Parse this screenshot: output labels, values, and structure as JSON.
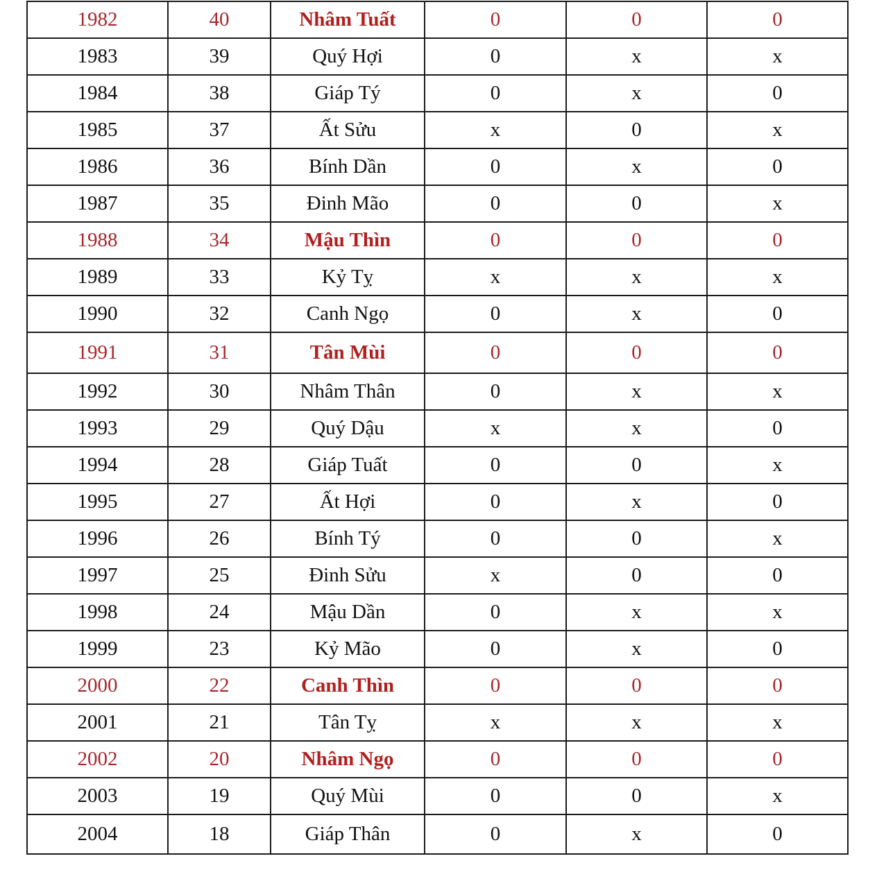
{
  "highlight_color": "#a8262b",
  "rows": [
    {
      "year": "1982",
      "age": "40",
      "name": "Nhâm Tuất",
      "c1": "0",
      "c2": "0",
      "c3": "0",
      "highlight": true
    },
    {
      "year": "1983",
      "age": "39",
      "name": "Quý Hợi",
      "c1": "0",
      "c2": "x",
      "c3": "x",
      "highlight": false
    },
    {
      "year": "1984",
      "age": "38",
      "name": "Giáp Tý",
      "c1": "0",
      "c2": "x",
      "c3": "0",
      "highlight": false
    },
    {
      "year": "1985",
      "age": "37",
      "name": "Ất Sửu",
      "c1": "x",
      "c2": "0",
      "c3": "x",
      "highlight": false
    },
    {
      "year": "1986",
      "age": "36",
      "name": "Bính Dần",
      "c1": "0",
      "c2": "x",
      "c3": "0",
      "highlight": false
    },
    {
      "year": "1987",
      "age": "35",
      "name": "Đinh Mão",
      "c1": "0",
      "c2": "0",
      "c3": "x",
      "highlight": false
    },
    {
      "year": "1988",
      "age": "34",
      "name": "Mậu Thìn",
      "c1": "0",
      "c2": "0",
      "c3": "0",
      "highlight": true
    },
    {
      "year": "1989",
      "age": "33",
      "name": "Kỷ Tỵ",
      "c1": "x",
      "c2": "x",
      "c3": "x",
      "highlight": false
    },
    {
      "year": "1990",
      "age": "32",
      "name": "Canh Ngọ",
      "c1": "0",
      "c2": "x",
      "c3": "0",
      "highlight": false
    },
    {
      "year": "1991",
      "age": "31",
      "name": "Tân Mùi",
      "c1": "0",
      "c2": "0",
      "c3": "0",
      "highlight": true
    },
    {
      "year": "1992",
      "age": "30",
      "name": "Nhâm Thân",
      "c1": "0",
      "c2": "x",
      "c3": "x",
      "highlight": false
    },
    {
      "year": "1993",
      "age": "29",
      "name": "Quý Dậu",
      "c1": "x",
      "c2": "x",
      "c3": "0",
      "highlight": false
    },
    {
      "year": "1994",
      "age": "28",
      "name": "Giáp Tuất",
      "c1": "0",
      "c2": "0",
      "c3": "x",
      "highlight": false
    },
    {
      "year": "1995",
      "age": "27",
      "name": "Ất Hợi",
      "c1": "0",
      "c2": "x",
      "c3": "0",
      "highlight": false
    },
    {
      "year": "1996",
      "age": "26",
      "name": "Bính Tý",
      "c1": "0",
      "c2": "0",
      "c3": "x",
      "highlight": false
    },
    {
      "year": "1997",
      "age": "25",
      "name": "Đinh Sửu",
      "c1": "x",
      "c2": "0",
      "c3": "0",
      "highlight": false
    },
    {
      "year": "1998",
      "age": "24",
      "name": "Mậu Dần",
      "c1": "0",
      "c2": "x",
      "c3": "x",
      "highlight": false
    },
    {
      "year": "1999",
      "age": "23",
      "name": "Kỷ Mão",
      "c1": "0",
      "c2": "x",
      "c3": "0",
      "highlight": false
    },
    {
      "year": "2000",
      "age": "22",
      "name": "Canh Thìn",
      "c1": "0",
      "c2": "0",
      "c3": "0",
      "highlight": true
    },
    {
      "year": "2001",
      "age": "21",
      "name": "Tân Tỵ",
      "c1": "x",
      "c2": "x",
      "c3": "x",
      "highlight": false
    },
    {
      "year": "2002",
      "age": "20",
      "name": "Nhâm Ngọ",
      "c1": "0",
      "c2": "0",
      "c3": "0",
      "highlight": true
    },
    {
      "year": "2003",
      "age": "19",
      "name": "Quý Mùi",
      "c1": "0",
      "c2": "0",
      "c3": "x",
      "highlight": false
    },
    {
      "year": "2004",
      "age": "18",
      "name": "Giáp Thân",
      "c1": "0",
      "c2": "x",
      "c3": "0",
      "highlight": false
    }
  ]
}
